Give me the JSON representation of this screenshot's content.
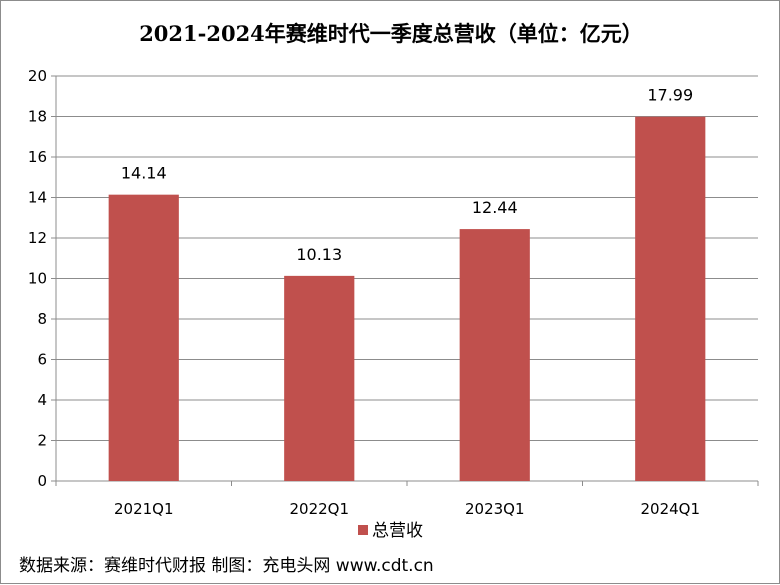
{
  "chart_data": {
    "type": "bar",
    "title": "2021-2024年赛维时代一季度总营收（单位：亿元）",
    "categories": [
      "2021Q1",
      "2022Q1",
      "2023Q1",
      "2024Q1"
    ],
    "series": [
      {
        "name": "总营收",
        "values": [
          14.14,
          10.13,
          12.44,
          17.99
        ],
        "color": "#c0504d"
      }
    ],
    "data_labels": [
      "14.14",
      "10.13",
      "12.44",
      "17.99"
    ],
    "y_ticks": [
      "0",
      "2",
      "4",
      "6",
      "8",
      "10",
      "12",
      "14",
      "16",
      "18",
      "20"
    ],
    "ylim": [
      0,
      20
    ],
    "grid": true,
    "legend_position": "bottom"
  },
  "source_note": "数据来源：赛维时代财报 制图：充电头网 www.cdt.cn"
}
